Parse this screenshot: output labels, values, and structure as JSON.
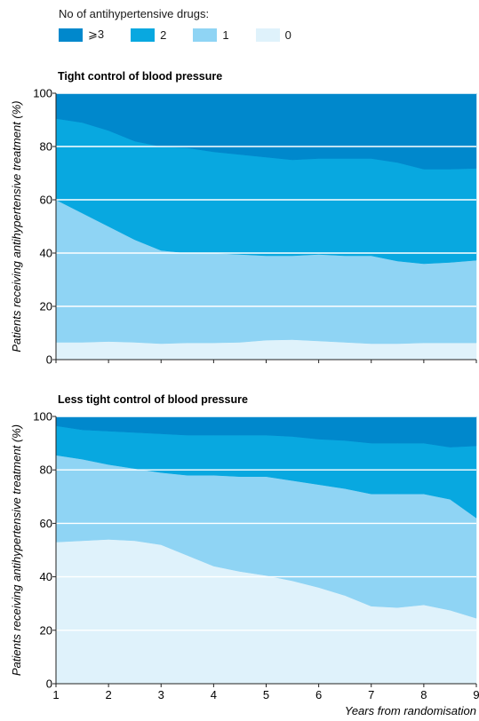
{
  "legend": {
    "title": "No of antihypertensive drugs:",
    "items": [
      {
        "label": "⩾3",
        "color": "#0088cc"
      },
      {
        "label": "2",
        "color": "#08a8e0"
      },
      {
        "label": "1",
        "color": "#8fd4f4"
      },
      {
        "label": "0",
        "color": "#dff2fb"
      }
    ]
  },
  "chart_data": [
    {
      "type": "area",
      "stacked": true,
      "title": "Tight control of blood pressure",
      "xlabel": "",
      "ylabel": "Patients receiving antihypertensive treatment (%)",
      "xlim": [
        1,
        9
      ],
      "ylim": [
        0,
        100
      ],
      "yticks": [
        0,
        20,
        40,
        60,
        80,
        100
      ],
      "xticks": [
        1,
        2,
        3,
        4,
        5,
        6,
        7,
        8,
        9
      ],
      "show_xtick_labels": false,
      "grid": "horizontal",
      "x": [
        1,
        1.5,
        2,
        2.5,
        3,
        3.5,
        4,
        4.5,
        5,
        5.5,
        6,
        6.5,
        7,
        7.5,
        8,
        8.5,
        9
      ],
      "series": [
        {
          "name": "0",
          "color": "#dff2fb",
          "values": [
            6.5,
            6.5,
            6.8,
            6.5,
            6,
            6.3,
            6.3,
            6.5,
            7.3,
            7.5,
            7,
            6.5,
            6,
            6,
            6.3,
            6.3,
            6.3
          ]
        },
        {
          "name": "1",
          "color": "#8fd4f4",
          "values": [
            53.5,
            48.5,
            43.2,
            38.5,
            35,
            33.7,
            33.7,
            33,
            31.7,
            31.5,
            32.5,
            32.5,
            33,
            31,
            29.7,
            30.2,
            31
          ]
        },
        {
          "name": "2",
          "color": "#08a8e0",
          "values": [
            30.5,
            34,
            36,
            37,
            39,
            39.5,
            38,
            37.5,
            37,
            36,
            36,
            36.5,
            36.5,
            37,
            35.5,
            35,
            34.5
          ]
        },
        {
          "name": "⩾3",
          "color": "#0088cc",
          "values": [
            9.5,
            11,
            14,
            18,
            20,
            20.5,
            22,
            23,
            24,
            25,
            24.5,
            24.5,
            24.5,
            26,
            28.5,
            28.5,
            28.2
          ]
        }
      ]
    },
    {
      "type": "area",
      "stacked": true,
      "title": "Less tight control of blood pressure",
      "xlabel": "Years from randomisation",
      "ylabel": "Patients receiving antihypertensive treatment (%)",
      "xlim": [
        1,
        9
      ],
      "ylim": [
        0,
        100
      ],
      "yticks": [
        0,
        20,
        40,
        60,
        80,
        100
      ],
      "xticks": [
        1,
        2,
        3,
        4,
        5,
        6,
        7,
        8,
        9
      ],
      "show_xtick_labels": true,
      "grid": "horizontal",
      "x": [
        1,
        1.5,
        2,
        2.5,
        3,
        3.5,
        4,
        4.5,
        5,
        5.5,
        6,
        6.5,
        7,
        7.5,
        8,
        8.5,
        9
      ],
      "series": [
        {
          "name": "0",
          "color": "#dff2fb",
          "values": [
            53,
            53.5,
            54,
            53.5,
            52,
            48,
            44,
            42,
            40.5,
            38.5,
            36,
            33,
            29,
            28.5,
            29.5,
            27.5,
            24.5
          ]
        },
        {
          "name": "1",
          "color": "#8fd4f4",
          "values": [
            32.5,
            30.5,
            28,
            27,
            27,
            30,
            34,
            35.5,
            37,
            37.5,
            38.5,
            40,
            42,
            42.5,
            41.5,
            41.5,
            37.5
          ]
        },
        {
          "name": "2",
          "color": "#08a8e0",
          "values": [
            11,
            11,
            12.5,
            13.5,
            14.5,
            15,
            15,
            15.5,
            15.5,
            16.5,
            17,
            18,
            19,
            19,
            19,
            19.5,
            27
          ]
        },
        {
          "name": "⩾3",
          "color": "#0088cc",
          "values": [
            3.5,
            5,
            5.5,
            6,
            6.5,
            7,
            7,
            7,
            7,
            7.5,
            8.5,
            9,
            10,
            10,
            10,
            11.5,
            11
          ]
        }
      ]
    }
  ]
}
